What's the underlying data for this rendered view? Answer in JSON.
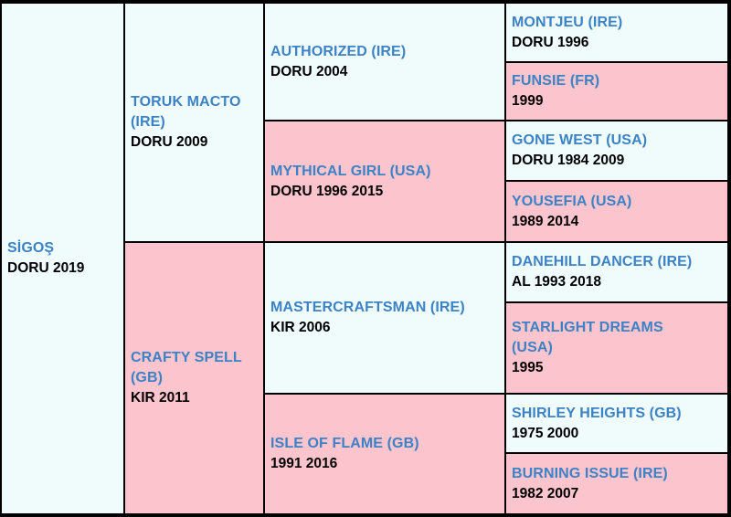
{
  "horse": {
    "name": "SİGOŞ",
    "info": "DORU 2019"
  },
  "sire": {
    "name": "TORUK MACTO (IRE)",
    "info": "DORU 2009"
  },
  "dam": {
    "name": "CRAFTY SPELL (GB)",
    "info": "KIR 2011"
  },
  "sire_sire": {
    "name": "AUTHORIZED (IRE)",
    "info": "DORU 2004"
  },
  "sire_dam": {
    "name": "MYTHICAL GIRL (USA)",
    "info": "DORU 1996 2015"
  },
  "dam_sire": {
    "name": "MASTERCRAFTSMAN (IRE)",
    "info": "KIR 2006"
  },
  "dam_dam": {
    "name": "ISLE OF FLAME (GB)",
    "info": "1991 2016"
  },
  "gen3": [
    {
      "name": "MONTJEU (IRE)",
      "info": "DORU 1996"
    },
    {
      "name": "FUNSIE (FR)",
      "info": "1999"
    },
    {
      "name": "GONE WEST (USA)",
      "info": "DORU 1984 2009"
    },
    {
      "name": "YOUSEFIA (USA)",
      "info": "1989 2014"
    },
    {
      "name": "DANEHILL DANCER (IRE)",
      "info": "AL 1993 2018"
    },
    {
      "name": "STARLIGHT DREAMS (USA)",
      "info": "1995"
    },
    {
      "name": "SHIRLEY HEIGHTS (GB)",
      "info": "1975 2000"
    },
    {
      "name": "BURNING ISSUE (IRE)",
      "info": "1982 2007"
    }
  ],
  "colors": {
    "male_bg": "#f0fcfc",
    "female_bg": "#fcc4cc",
    "name_text": "#3b82c6",
    "info_text": "#000000",
    "border": "#000000"
  }
}
